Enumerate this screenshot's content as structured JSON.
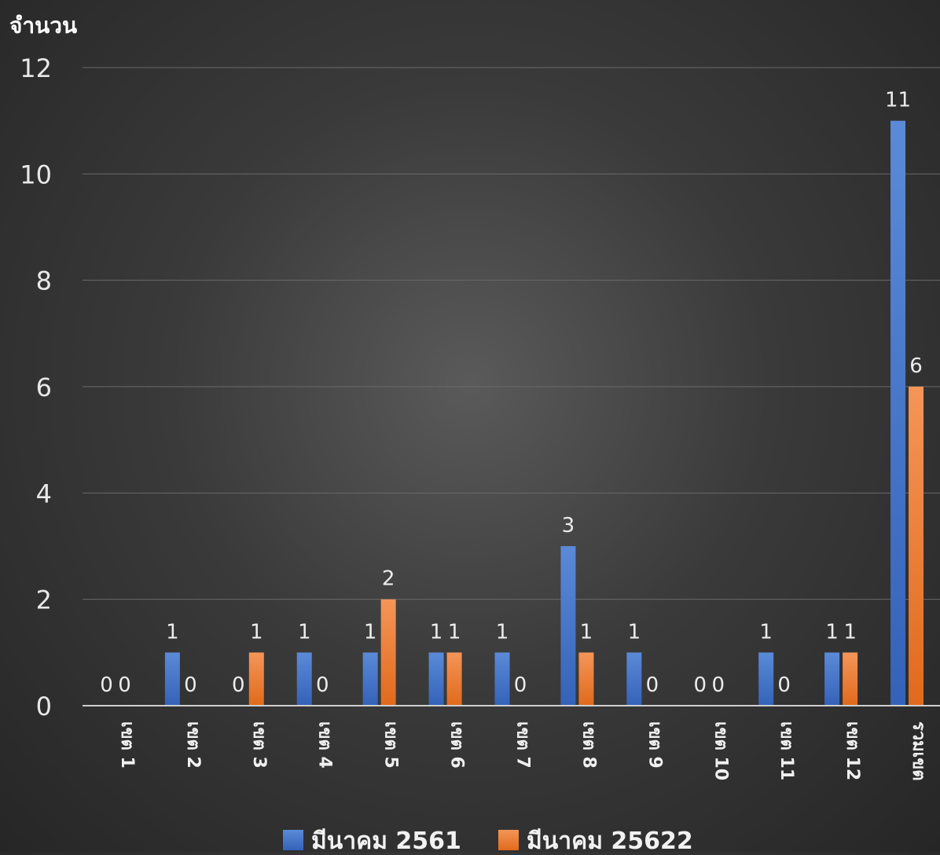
{
  "chart_data": {
    "type": "bar",
    "ylabel": "จำนวน",
    "xlabel": "",
    "title": "",
    "ylim": [
      0,
      12
    ],
    "yticks": [
      0,
      2,
      4,
      6,
      8,
      10,
      12
    ],
    "grid": true,
    "legend_position": "bottom",
    "categories": [
      "เขต 1",
      "เขต 2",
      "เขต 3",
      "เขต 4",
      "เขต 5",
      "เขต 6",
      "เขต 7",
      "เขต 8",
      "เขต 9",
      "เขต 10",
      "เขต 11",
      "เขต 12",
      "รวมเขต"
    ],
    "series": [
      {
        "name": "มีนาคม 2561",
        "color": "#4472C4",
        "values": [
          0,
          1,
          0,
          1,
          1,
          1,
          1,
          3,
          1,
          0,
          1,
          1,
          11
        ]
      },
      {
        "name": "มีนาคม 25622",
        "color": "#ED7D31",
        "values": [
          0,
          0,
          1,
          0,
          2,
          1,
          0,
          1,
          0,
          0,
          0,
          1,
          6
        ]
      }
    ]
  }
}
